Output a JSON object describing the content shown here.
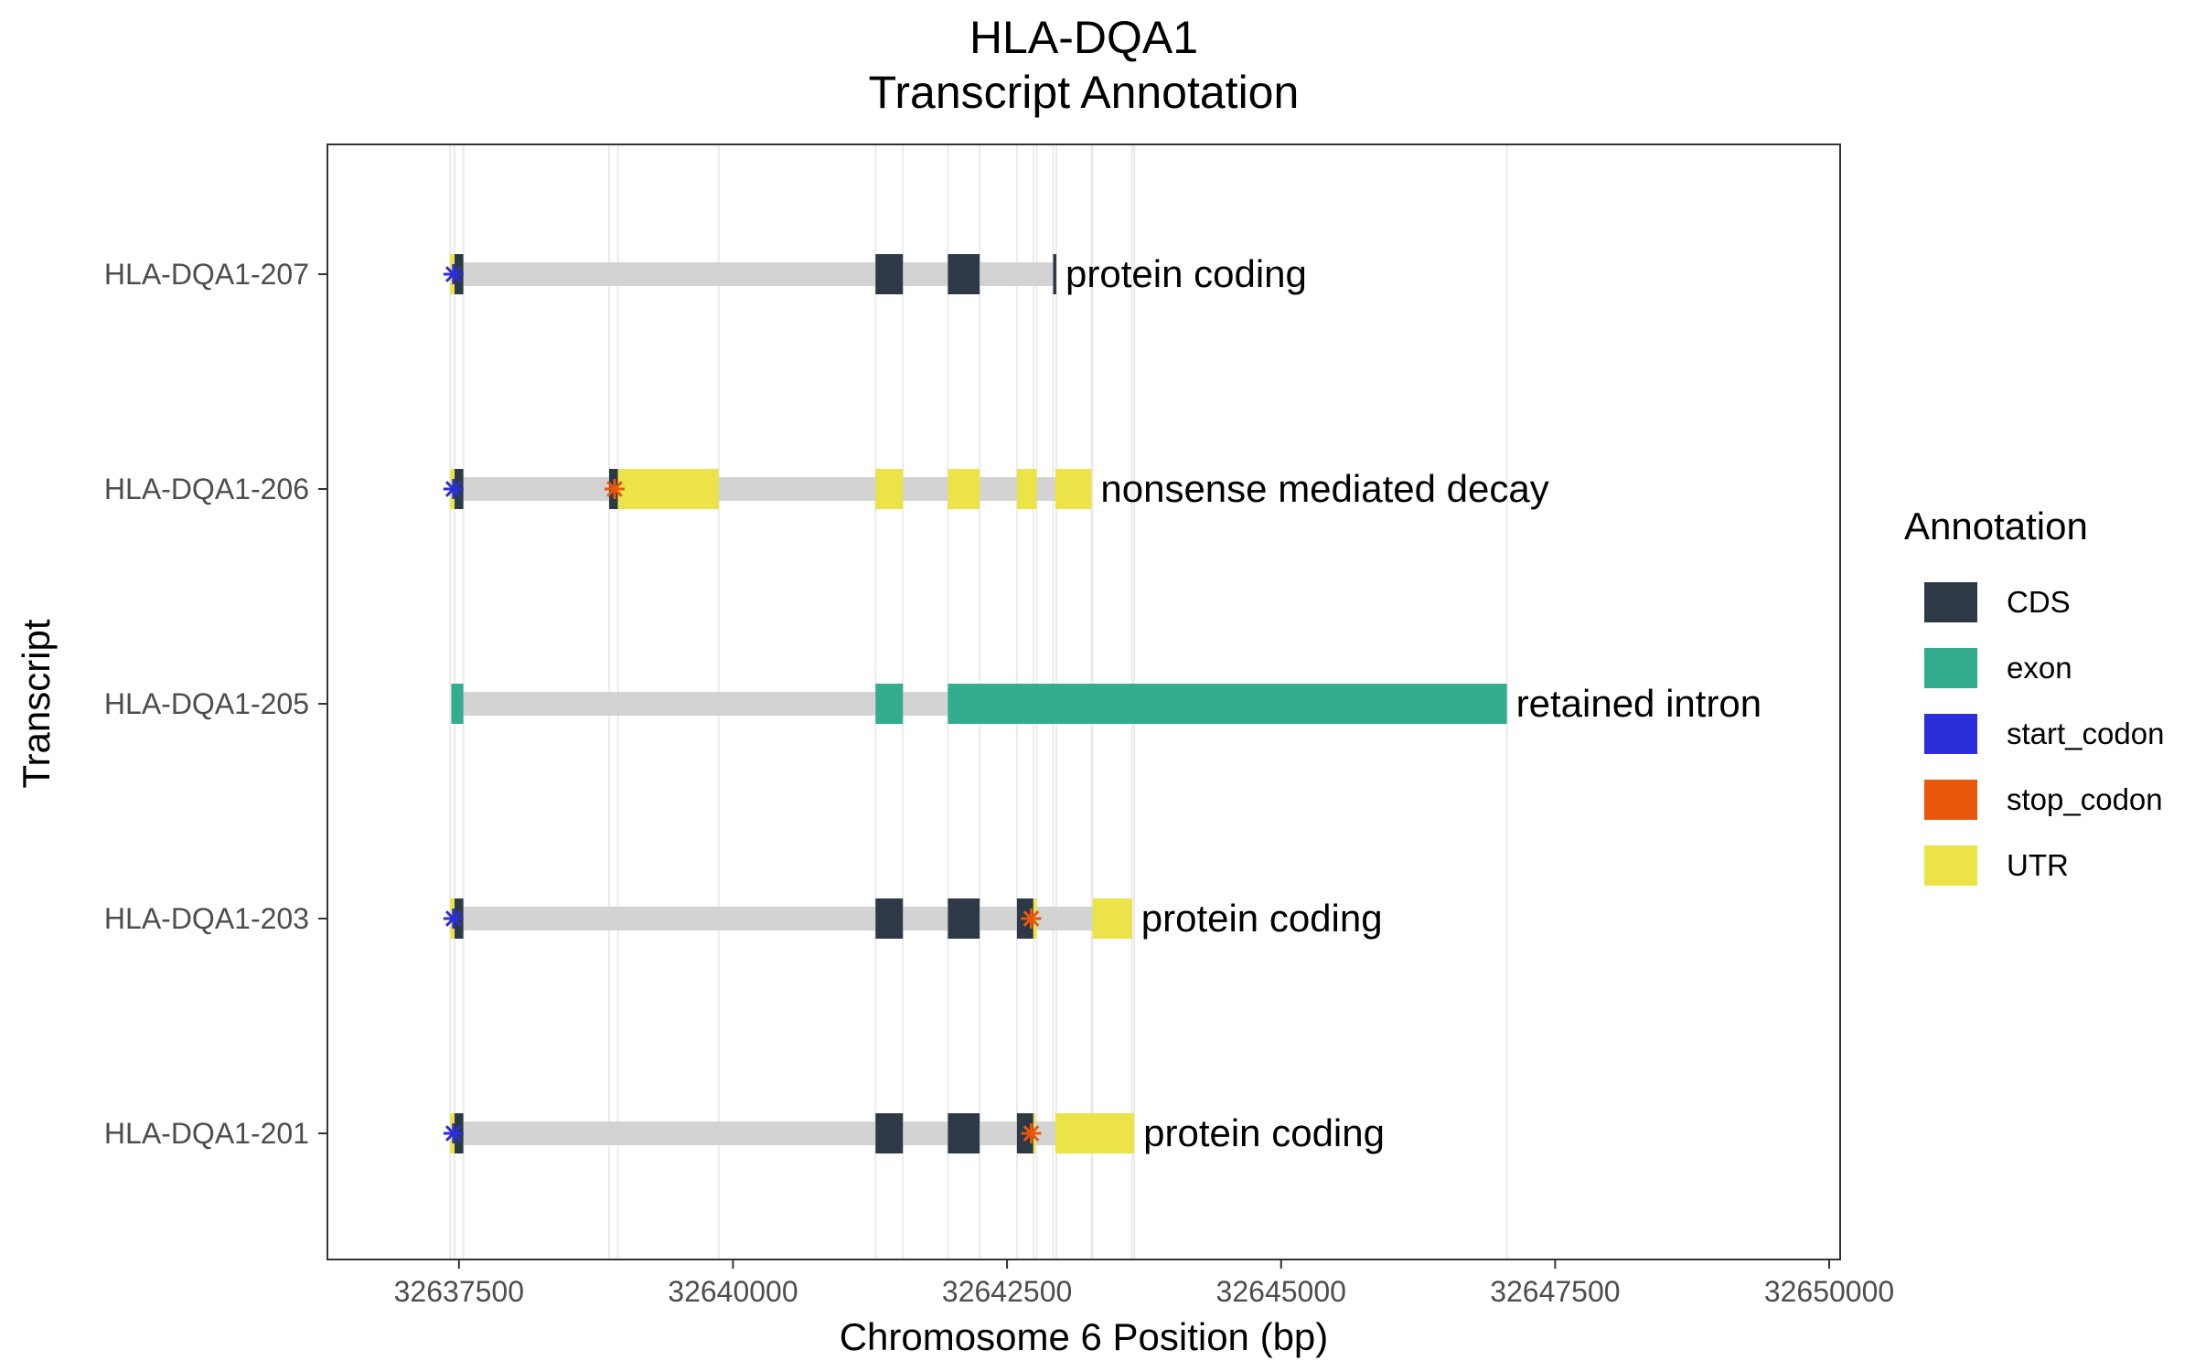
{
  "chart_data": {
    "type": "gene-track",
    "title": "HLA-DQA1",
    "subtitle": "Transcript Annotation",
    "xlabel": "Chromosome 6 Position (bp)",
    "ylabel": "Transcript",
    "xlim": [
      32636300,
      32650100
    ],
    "xticks": [
      32637500,
      32640000,
      32642500,
      32645000,
      32647500,
      32650000
    ],
    "x_tick_labels": [
      "32637500",
      "32640000",
      "32642500",
      "32645000",
      "32647500",
      "32650000"
    ],
    "grid": "vertical lines at feature boundaries",
    "legend": {
      "title": "Annotation",
      "position": "right",
      "items": [
        {
          "label": "CDS",
          "color": "#2d3a45"
        },
        {
          "label": "exon",
          "color": "#33ad8d"
        },
        {
          "label": "start_codon",
          "color": "#2b2fd9"
        },
        {
          "label": "stop_codon",
          "color": "#e8570c"
        },
        {
          "label": "UTR",
          "color": "#ebe347"
        }
      ]
    },
    "intron_color": "#d3d3d3",
    "transcripts": [
      {
        "name": "HLA-DQA1-207",
        "biotype": "protein coding",
        "span": [
          32637420,
          32642950
        ],
        "features": [
          {
            "type": "UTR",
            "start": 32637420,
            "end": 32637460
          },
          {
            "type": "CDS",
            "start": 32637460,
            "end": 32637540
          },
          {
            "type": "CDS",
            "start": 32641300,
            "end": 32641550
          },
          {
            "type": "CDS",
            "start": 32641960,
            "end": 32642250
          },
          {
            "type": "CDS",
            "start": 32642920,
            "end": 32642950
          }
        ],
        "start_codons": [
          32637450
        ],
        "stop_codons": []
      },
      {
        "name": "HLA-DQA1-206",
        "biotype": "nonsense mediated decay",
        "span": [
          32637420,
          32643270
        ],
        "features": [
          {
            "type": "UTR",
            "start": 32637420,
            "end": 32637460
          },
          {
            "type": "CDS",
            "start": 32637460,
            "end": 32637540
          },
          {
            "type": "CDS",
            "start": 32638870,
            "end": 32638950
          },
          {
            "type": "UTR",
            "start": 32638950,
            "end": 32639870
          },
          {
            "type": "UTR",
            "start": 32641300,
            "end": 32641550
          },
          {
            "type": "UTR",
            "start": 32641960,
            "end": 32642250
          },
          {
            "type": "UTR",
            "start": 32642590,
            "end": 32642770
          },
          {
            "type": "UTR",
            "start": 32642940,
            "end": 32643270
          }
        ],
        "start_codons": [
          32637450
        ],
        "stop_codons": [
          32638920
        ]
      },
      {
        "name": "HLA-DQA1-205",
        "biotype": "retained intron",
        "span": [
          32637430,
          32647060
        ],
        "features": [
          {
            "type": "exon",
            "start": 32637430,
            "end": 32637540
          },
          {
            "type": "exon",
            "start": 32641300,
            "end": 32641550
          },
          {
            "type": "exon",
            "start": 32641960,
            "end": 32647060
          }
        ],
        "start_codons": [],
        "stop_codons": []
      },
      {
        "name": "HLA-DQA1-203",
        "biotype": "protein coding",
        "span": [
          32637420,
          32643640
        ],
        "features": [
          {
            "type": "UTR",
            "start": 32637420,
            "end": 32637460
          },
          {
            "type": "CDS",
            "start": 32637460,
            "end": 32637540
          },
          {
            "type": "CDS",
            "start": 32641300,
            "end": 32641550
          },
          {
            "type": "CDS",
            "start": 32641960,
            "end": 32642250
          },
          {
            "type": "CDS",
            "start": 32642590,
            "end": 32642740
          },
          {
            "type": "UTR",
            "start": 32642740,
            "end": 32642770
          },
          {
            "type": "UTR",
            "start": 32643280,
            "end": 32643640
          }
        ],
        "start_codons": [
          32637450
        ],
        "stop_codons": [
          32642720
        ]
      },
      {
        "name": "HLA-DQA1-201",
        "biotype": "protein coding",
        "span": [
          32637420,
          32643660
        ],
        "features": [
          {
            "type": "UTR",
            "start": 32637420,
            "end": 32637460
          },
          {
            "type": "CDS",
            "start": 32637460,
            "end": 32637540
          },
          {
            "type": "CDS",
            "start": 32641300,
            "end": 32641550
          },
          {
            "type": "CDS",
            "start": 32641960,
            "end": 32642250
          },
          {
            "type": "CDS",
            "start": 32642590,
            "end": 32642740
          },
          {
            "type": "UTR",
            "start": 32642740,
            "end": 32642760
          },
          {
            "type": "UTR",
            "start": 32642940,
            "end": 32643660
          }
        ],
        "start_codons": [
          32637450
        ],
        "stop_codons": [
          32642720
        ]
      }
    ],
    "vertical_gridlines": [
      32637420,
      32637460,
      32637540,
      32638870,
      32638950,
      32639870,
      32641300,
      32641550,
      32641960,
      32642250,
      32642590,
      32642740,
      32642770,
      32642920,
      32642950,
      32643270,
      32643280,
      32643640,
      32643660,
      32647060
    ]
  }
}
